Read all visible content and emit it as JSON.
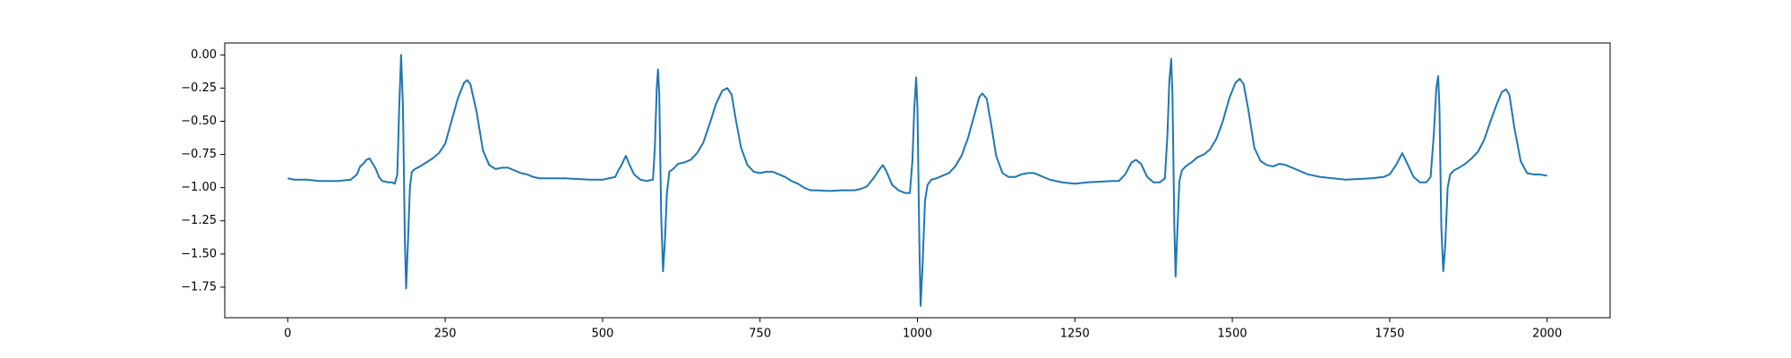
{
  "chart_data": {
    "type": "line",
    "color": "#1f77b4",
    "xlim": [
      -100,
      2100
    ],
    "ylim": [
      -1.98,
      0.09
    ],
    "xticks": [
      0,
      250,
      500,
      750,
      1000,
      1250,
      1500,
      1750,
      2000
    ],
    "yticks": [
      {
        "value": 0,
        "label": "0.00"
      },
      {
        "value": -0.25,
        "label": "−0.25"
      },
      {
        "value": -0.5,
        "label": "−0.50"
      },
      {
        "value": -0.75,
        "label": "−0.75"
      },
      {
        "value": -1,
        "label": "−1.00"
      },
      {
        "value": -1.25,
        "label": "−1.25"
      },
      {
        "value": -1.5,
        "label": "−1.50"
      },
      {
        "value": -1.75,
        "label": "−1.75"
      }
    ],
    "x": [
      0,
      10,
      20,
      30,
      40,
      50,
      60,
      70,
      80,
      90,
      100,
      110,
      115,
      120,
      125,
      130,
      135,
      140,
      145,
      150,
      160,
      165,
      170,
      174,
      177,
      180,
      183,
      186,
      188,
      191,
      194,
      197,
      202,
      210,
      220,
      230,
      240,
      250,
      260,
      270,
      280,
      285,
      290,
      300,
      310,
      320,
      330,
      340,
      350,
      360,
      370,
      380,
      390,
      400,
      420,
      440,
      460,
      480,
      500,
      510,
      520,
      525,
      530,
      537,
      542,
      550,
      560,
      570,
      580,
      583,
      586,
      588,
      590,
      593,
      596,
      599,
      602,
      606,
      612,
      620,
      630,
      640,
      650,
      660,
      670,
      680,
      690,
      698,
      705,
      712,
      720,
      730,
      740,
      750,
      760,
      770,
      780,
      790,
      800,
      810,
      820,
      830,
      840,
      860,
      880,
      900,
      910,
      920,
      930,
      940,
      945,
      950,
      960,
      970,
      980,
      988,
      992,
      995,
      998,
      1000,
      1003,
      1005,
      1008,
      1012,
      1016,
      1022,
      1030,
      1040,
      1050,
      1060,
      1070,
      1080,
      1090,
      1098,
      1103,
      1110,
      1118,
      1125,
      1135,
      1145,
      1155,
      1165,
      1175,
      1185,
      1195,
      1210,
      1230,
      1250,
      1270,
      1290,
      1310,
      1320,
      1330,
      1340,
      1347,
      1355,
      1365,
      1375,
      1385,
      1393,
      1397,
      1400,
      1403,
      1405,
      1408,
      1410,
      1413,
      1416,
      1420,
      1426,
      1435,
      1445,
      1455,
      1465,
      1475,
      1485,
      1495,
      1505,
      1512,
      1518,
      1525,
      1535,
      1545,
      1555,
      1565,
      1575,
      1585,
      1600,
      1620,
      1640,
      1660,
      1680,
      1700,
      1720,
      1740,
      1750,
      1760,
      1770,
      1778,
      1788,
      1798,
      1808,
      1815,
      1820,
      1824,
      1827,
      1829,
      1832,
      1835,
      1838,
      1842,
      1846,
      1852,
      1860,
      1870,
      1880,
      1890,
      1900,
      1910,
      1920,
      1928,
      1935,
      1940,
      1948,
      1958,
      1968,
      1978,
      1988,
      2000
    ],
    "values": [
      -0.93,
      -0.94,
      -0.94,
      -0.94,
      -0.945,
      -0.95,
      -0.95,
      -0.95,
      -0.95,
      -0.945,
      -0.94,
      -0.9,
      -0.84,
      -0.82,
      -0.79,
      -0.78,
      -0.82,
      -0.86,
      -0.92,
      -0.95,
      -0.96,
      -0.96,
      -0.97,
      -0.9,
      -0.4,
      0,
      -0.4,
      -1.4,
      -1.76,
      -1.4,
      -1,
      -0.88,
      -0.86,
      -0.84,
      -0.81,
      -0.78,
      -0.74,
      -0.67,
      -0.5,
      -0.33,
      -0.21,
      -0.19,
      -0.22,
      -0.43,
      -0.72,
      -0.83,
      -0.86,
      -0.85,
      -0.85,
      -0.87,
      -0.89,
      -0.9,
      -0.92,
      -0.93,
      -0.93,
      -0.93,
      -0.935,
      -0.94,
      -0.94,
      -0.93,
      -0.92,
      -0.87,
      -0.83,
      -0.76,
      -0.82,
      -0.9,
      -0.94,
      -0.95,
      -0.94,
      -0.7,
      -0.25,
      -0.11,
      -0.3,
      -1.2,
      -1.63,
      -1.4,
      -1.05,
      -0.88,
      -0.86,
      -0.82,
      -0.81,
      -0.79,
      -0.74,
      -0.66,
      -0.52,
      -0.37,
      -0.27,
      -0.25,
      -0.3,
      -0.5,
      -0.7,
      -0.83,
      -0.88,
      -0.89,
      -0.88,
      -0.88,
      -0.9,
      -0.92,
      -0.95,
      -0.97,
      -1,
      -1.02,
      -1.02,
      -1.025,
      -1.02,
      -1.02,
      -1.01,
      -0.99,
      -0.93,
      -0.86,
      -0.83,
      -0.87,
      -0.98,
      -1.02,
      -1.04,
      -1.04,
      -0.8,
      -0.4,
      -0.17,
      -0.4,
      -1.4,
      -1.89,
      -1.6,
      -1.1,
      -0.98,
      -0.94,
      -0.93,
      -0.91,
      -0.89,
      -0.84,
      -0.76,
      -0.63,
      -0.46,
      -0.32,
      -0.29,
      -0.33,
      -0.55,
      -0.76,
      -0.89,
      -0.92,
      -0.92,
      -0.9,
      -0.89,
      -0.89,
      -0.91,
      -0.94,
      -0.96,
      -0.97,
      -0.96,
      -0.955,
      -0.95,
      -0.95,
      -0.9,
      -0.81,
      -0.79,
      -0.82,
      -0.92,
      -0.96,
      -0.96,
      -0.93,
      -0.6,
      -0.2,
      -0.03,
      -0.3,
      -1.3,
      -1.67,
      -1.3,
      -0.95,
      -0.87,
      -0.84,
      -0.81,
      -0.77,
      -0.75,
      -0.71,
      -0.63,
      -0.5,
      -0.33,
      -0.21,
      -0.18,
      -0.22,
      -0.4,
      -0.7,
      -0.8,
      -0.83,
      -0.84,
      -0.82,
      -0.83,
      -0.86,
      -0.9,
      -0.92,
      -0.93,
      -0.94,
      -0.935,
      -0.93,
      -0.92,
      -0.9,
      -0.83,
      -0.74,
      -0.82,
      -0.92,
      -0.96,
      -0.96,
      -0.92,
      -0.6,
      -0.25,
      -0.16,
      -0.4,
      -1.3,
      -1.63,
      -1.45,
      -1,
      -0.9,
      -0.87,
      -0.85,
      -0.82,
      -0.78,
      -0.73,
      -0.64,
      -0.5,
      -0.37,
      -0.28,
      -0.26,
      -0.3,
      -0.55,
      -0.8,
      -0.89,
      -0.9,
      -0.9,
      -0.91
    ]
  }
}
